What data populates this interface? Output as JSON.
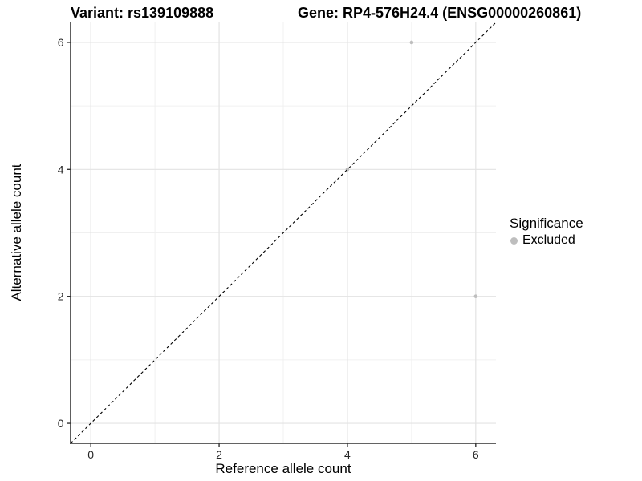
{
  "chart_data": {
    "type": "scatter",
    "title_left": "Variant: rs139109888",
    "title_right": "Gene: RP4-576H24.4 (ENSG00000260861)",
    "xlabel": "Reference allele count",
    "ylabel": "Alternative allele count",
    "xlim": [
      -0.315,
      6.315
    ],
    "ylim": [
      -0.315,
      6.315
    ],
    "xticks": [
      0,
      2,
      4,
      6
    ],
    "yticks": [
      0,
      2,
      4,
      6
    ],
    "minor_grid_at": [
      1,
      3,
      5
    ],
    "grid": true,
    "identity_line": {
      "slope": 1,
      "intercept": 0,
      "style": "dashed",
      "color": "#000000"
    },
    "series": [
      {
        "name": "Excluded",
        "color": "#bebebe",
        "points": [
          [
            4,
            4
          ],
          [
            5,
            6
          ],
          [
            6,
            2
          ]
        ]
      }
    ],
    "legend": {
      "title": "Significance",
      "position": "right",
      "entries": [
        {
          "label": "Excluded",
          "color": "#bebebe"
        }
      ]
    },
    "colors": {
      "axis_line": "#4d4d4d",
      "tick_mark": "#333333",
      "tick_label": "#262626",
      "grid_major": "#e3e3e3",
      "grid_minor": "#f0f0f0",
      "background": "#ffffff"
    }
  }
}
